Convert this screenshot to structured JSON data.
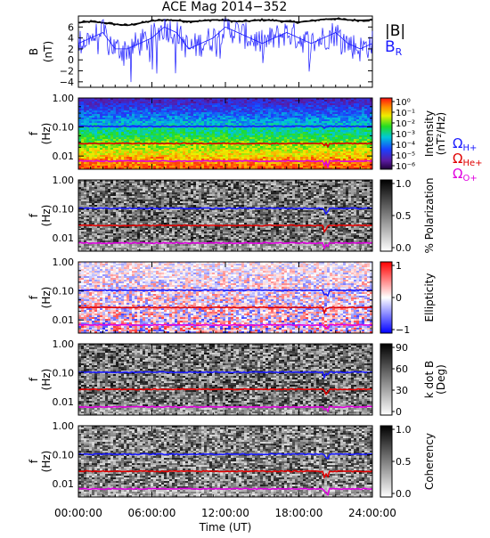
{
  "title": "ACE Mag 2014−352",
  "x_axis": {
    "label": "Time (UT)",
    "ticks": [
      "00:00:00",
      "06:00:00",
      "12:00:00",
      "18:00:00",
      "24:00:00"
    ]
  },
  "chart_data": [
    {
      "type": "line",
      "panel": "B",
      "ylabel": "B",
      "yunit": "(nT)",
      "ylim": [
        -5,
        8
      ],
      "y_ticks": [
        "6",
        "4",
        "2",
        "0",
        "−2",
        "−4"
      ],
      "xlim": [
        0,
        24
      ],
      "series": [
        {
          "name": "|B|",
          "color": "#000000",
          "x": [
            0,
            1,
            2,
            3,
            4,
            5,
            6,
            7,
            8,
            9,
            10,
            11,
            12,
            13,
            14,
            15,
            16,
            17,
            18,
            19,
            20,
            21,
            22,
            23,
            24
          ],
          "values": [
            6.8,
            7.0,
            6.8,
            6.5,
            6.3,
            6.7,
            7.1,
            7.3,
            7.2,
            7.0,
            7.1,
            7.3,
            7.2,
            7.0,
            7.1,
            7.3,
            7.2,
            7.0,
            6.9,
            7.1,
            7.4,
            7.5,
            7.3,
            7.2,
            7.3
          ]
        },
        {
          "name": "B_R",
          "label_main": "B",
          "label_sub": "R",
          "color": "#1a1aff",
          "x": [
            0,
            1,
            2,
            3,
            4,
            5,
            6,
            7,
            8,
            9,
            10,
            11,
            12,
            13,
            14,
            15,
            16,
            17,
            18,
            19,
            20,
            21,
            22,
            23,
            24
          ],
          "values": [
            3,
            4,
            5,
            2,
            2,
            3,
            4,
            6,
            5,
            2,
            3,
            4,
            6,
            5,
            4,
            3,
            4,
            5,
            4,
            3,
            4,
            5,
            3,
            2,
            3
          ]
        }
      ]
    },
    {
      "type": "heatmap",
      "panel": "intensity",
      "ylabel": "f",
      "yunit": "(Hz)",
      "y_ticks": [
        "1.00",
        "0.10",
        "0.01"
      ],
      "colorbar_label": "Intensity",
      "colorbar_unit": "(nT²/Hz)",
      "colorbar_ticks": [
        "10⁰",
        "10⁻¹",
        "10⁻²",
        "10⁻³",
        "10⁻⁴",
        "10⁻⁵",
        "10⁻⁶"
      ],
      "cyclotron_labels": [
        {
          "main": "Ω",
          "sub": "H+",
          "color": "#1a1aff"
        },
        {
          "main": "Ω",
          "sub": "He+",
          "color": "#e00000"
        },
        {
          "main": "Ω",
          "sub": "O+",
          "color": "#e000e0"
        }
      ]
    },
    {
      "type": "heatmap",
      "panel": "polarization",
      "ylabel": "f",
      "yunit": "(Hz)",
      "y_ticks": [
        "1.00",
        "0.10",
        "0.01"
      ],
      "colorbar_label": "% Polarization",
      "colorbar_ticks": [
        "1.0",
        "0.5",
        "0.0"
      ]
    },
    {
      "type": "heatmap",
      "panel": "ellipticity",
      "ylabel": "f",
      "yunit": "(Hz)",
      "y_ticks": [
        "1.00",
        "0.10",
        "0.01"
      ],
      "colorbar_label": "Ellipticity",
      "colorbar_ticks": [
        "1",
        "0",
        "−1"
      ]
    },
    {
      "type": "heatmap",
      "panel": "kdotb",
      "ylabel": "f",
      "yunit": "(Hz)",
      "y_ticks": [
        "1.00",
        "0.10",
        "0.01"
      ],
      "colorbar_label": "k dot B",
      "colorbar_unit": "(Deg)",
      "colorbar_ticks": [
        "90",
        "60",
        "30",
        "0"
      ]
    },
    {
      "type": "heatmap",
      "panel": "coherency",
      "ylabel": "f",
      "yunit": "(Hz)",
      "y_ticks": [
        "1.00",
        "0.10",
        "0.01"
      ],
      "colorbar_label": "Coherency",
      "colorbar_ticks": [
        "1.0",
        "0.5",
        "0.0"
      ]
    }
  ],
  "cyclotron_frequencies": {
    "unit": "Hz",
    "H+": 0.105,
    "He+": 0.027,
    "O+": 0.0067
  },
  "colors": {
    "H+": "#1a1aff",
    "He+": "#e00000",
    "O+": "#e000e0",
    "B_R": "#1a1aff",
    "B_mag": "#000000"
  }
}
